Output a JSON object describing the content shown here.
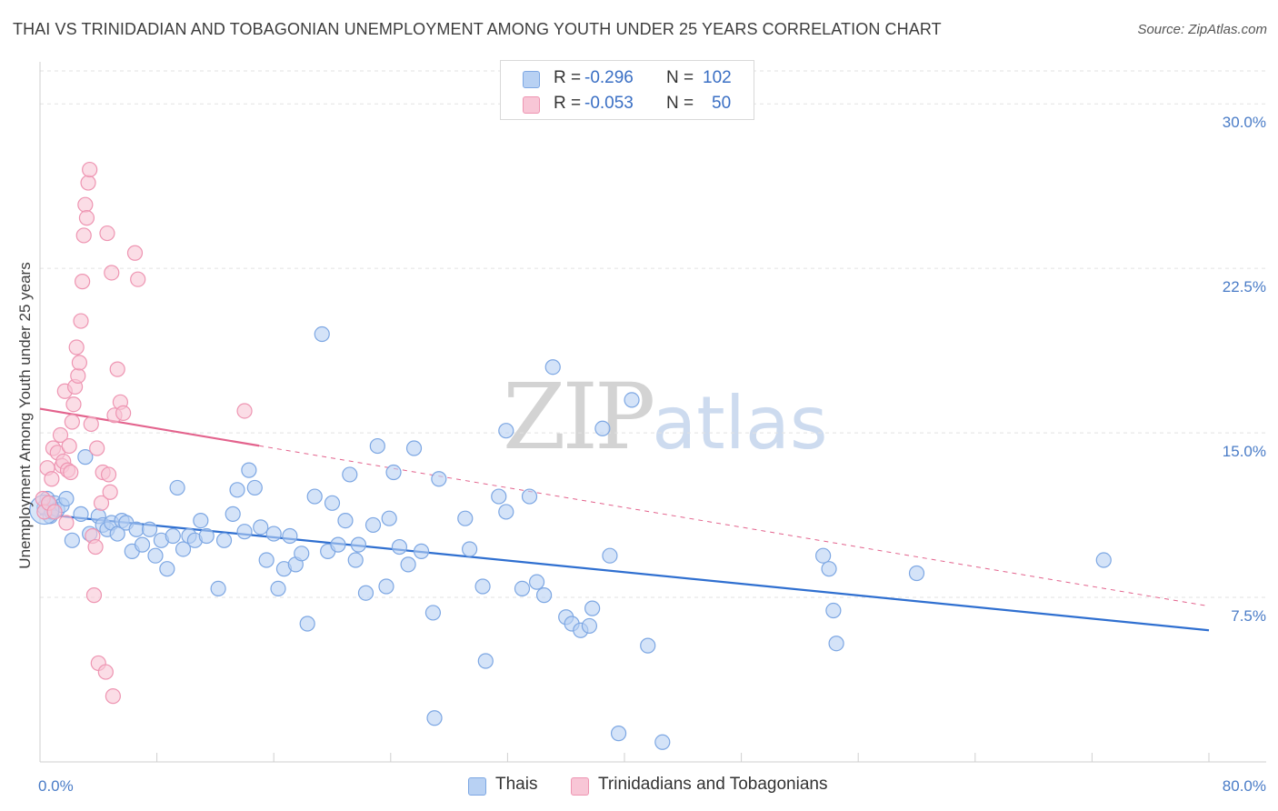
{
  "title": "THAI VS TRINIDADIAN AND TOBAGONIAN UNEMPLOYMENT AMONG YOUTH UNDER 25 YEARS CORRELATION CHART",
  "source": "Source: ZipAtlas.com",
  "watermark": {
    "zip": "ZIP",
    "atlas": "atlas"
  },
  "legend": {
    "rows": [
      {
        "r_label": "R =",
        "r_value": "-0.296",
        "n_label": "N =",
        "n_value": "102",
        "color": "#b8d1f3",
        "border": "#7da7e3"
      },
      {
        "r_label": "R =",
        "r_value": "-0.053",
        "n_label": "N =",
        "n_value": "50",
        "color": "#f8c6d6",
        "border": "#ee95b2"
      }
    ]
  },
  "bottom_legend": [
    {
      "label": "Thais",
      "color": "#b8d1f3",
      "border": "#7da7e3"
    },
    {
      "label": "Trinidadians and Tobagonians",
      "color": "#f8c6d6",
      "border": "#ee95b2"
    }
  ],
  "chart_data": {
    "type": "scatter",
    "ylabel": "Unemployment Among Youth under 25 years",
    "xlim": [
      0,
      80
    ],
    "ylim": [
      0,
      31.5
    ],
    "x_tick_labels": [
      {
        "value": 0,
        "label": "0.0%"
      },
      {
        "value": 80,
        "label": "80.0%"
      }
    ],
    "x_minor_ticks": [
      0,
      8,
      16,
      24,
      32,
      40,
      48,
      56,
      64,
      72,
      80
    ],
    "y_ticks": [
      {
        "value": 7.5,
        "label": "7.5%"
      },
      {
        "value": 15.0,
        "label": "15.0%"
      },
      {
        "value": 22.5,
        "label": "22.5%"
      },
      {
        "value": 30.0,
        "label": "30.0%"
      }
    ],
    "grid": true,
    "legend_position": "top-center",
    "series": [
      {
        "name": "Thais",
        "color": "#7da7e3",
        "fill": "#b8d1f3",
        "line_color": "#2f6fd0",
        "trend": {
          "x0": 0,
          "y0": 11.3,
          "x1": 80,
          "y1": 6.0,
          "dashed_from": null
        },
        "points": [
          [
            0.3,
            11.6
          ],
          [
            0.5,
            12.0
          ],
          [
            0.7,
            11.2
          ],
          [
            0.8,
            11.4
          ],
          [
            1.0,
            11.8
          ],
          [
            1.2,
            11.5
          ],
          [
            1.5,
            11.7
          ],
          [
            1.8,
            12.0
          ],
          [
            2.2,
            10.1
          ],
          [
            2.8,
            11.3
          ],
          [
            3.1,
            13.9
          ],
          [
            3.4,
            10.4
          ],
          [
            4.0,
            11.2
          ],
          [
            4.3,
            10.8
          ],
          [
            4.6,
            10.6
          ],
          [
            4.9,
            10.9
          ],
          [
            5.3,
            10.4
          ],
          [
            5.6,
            11.0
          ],
          [
            5.9,
            10.9
          ],
          [
            6.3,
            9.6
          ],
          [
            6.6,
            10.6
          ],
          [
            7.0,
            9.9
          ],
          [
            7.5,
            10.6
          ],
          [
            7.9,
            9.4
          ],
          [
            8.3,
            10.1
          ],
          [
            8.7,
            8.8
          ],
          [
            9.1,
            10.3
          ],
          [
            9.4,
            12.5
          ],
          [
            9.8,
            9.7
          ],
          [
            10.2,
            10.3
          ],
          [
            10.6,
            10.1
          ],
          [
            11.0,
            11.0
          ],
          [
            11.4,
            10.3
          ],
          [
            12.2,
            7.9
          ],
          [
            12.6,
            10.1
          ],
          [
            13.2,
            11.3
          ],
          [
            13.5,
            12.4
          ],
          [
            14.0,
            10.5
          ],
          [
            14.3,
            13.3
          ],
          [
            14.7,
            12.5
          ],
          [
            15.1,
            10.7
          ],
          [
            15.5,
            9.2
          ],
          [
            16.0,
            10.4
          ],
          [
            16.3,
            7.9
          ],
          [
            16.7,
            8.8
          ],
          [
            17.1,
            10.3
          ],
          [
            17.5,
            9.0
          ],
          [
            17.9,
            9.5
          ],
          [
            18.3,
            6.3
          ],
          [
            18.8,
            12.1
          ],
          [
            19.3,
            19.5
          ],
          [
            19.7,
            9.6
          ],
          [
            20.0,
            11.8
          ],
          [
            20.4,
            9.9
          ],
          [
            20.9,
            11.0
          ],
          [
            21.2,
            13.1
          ],
          [
            21.6,
            9.2
          ],
          [
            21.8,
            9.9
          ],
          [
            22.3,
            7.7
          ],
          [
            22.8,
            10.8
          ],
          [
            23.1,
            14.4
          ],
          [
            23.7,
            8.0
          ],
          [
            23.9,
            11.1
          ],
          [
            24.2,
            13.2
          ],
          [
            24.6,
            9.8
          ],
          [
            25.2,
            9.0
          ],
          [
            25.6,
            14.3
          ],
          [
            26.1,
            9.6
          ],
          [
            26.9,
            6.8
          ],
          [
            27.0,
            2.0
          ],
          [
            27.3,
            12.9
          ],
          [
            29.1,
            11.1
          ],
          [
            29.4,
            9.7
          ],
          [
            30.3,
            8.0
          ],
          [
            30.5,
            4.6
          ],
          [
            31.4,
            12.1
          ],
          [
            31.9,
            11.4
          ],
          [
            31.9,
            15.1
          ],
          [
            33.0,
            7.9
          ],
          [
            33.5,
            12.1
          ],
          [
            34.0,
            8.2
          ],
          [
            34.5,
            7.6
          ],
          [
            35.1,
            18.0
          ],
          [
            36.0,
            6.6
          ],
          [
            36.4,
            6.3
          ],
          [
            37.0,
            6.0
          ],
          [
            37.6,
            6.2
          ],
          [
            37.8,
            7.0
          ],
          [
            38.5,
            15.2
          ],
          [
            39.0,
            9.4
          ],
          [
            39.6,
            1.3
          ],
          [
            40.5,
            16.5
          ],
          [
            41.6,
            5.3
          ],
          [
            42.6,
            0.9
          ],
          [
            53.6,
            9.4
          ],
          [
            54.0,
            8.8
          ],
          [
            54.3,
            6.9
          ],
          [
            54.5,
            5.4
          ],
          [
            60.0,
            8.6
          ],
          [
            72.8,
            9.2
          ]
        ]
      },
      {
        "name": "Trinidadians and Tobagonians",
        "color": "#ee95b2",
        "fill": "#f8c6d6",
        "line_color": "#e3638d",
        "trend": {
          "x0": 0,
          "y0": 16.1,
          "x1": 80,
          "y1": 7.1,
          "solid_until": 15
        },
        "points": [
          [
            0.2,
            12.0
          ],
          [
            0.3,
            11.4
          ],
          [
            0.5,
            13.4
          ],
          [
            0.6,
            11.8
          ],
          [
            0.8,
            12.9
          ],
          [
            0.9,
            14.3
          ],
          [
            1.0,
            11.4
          ],
          [
            1.2,
            14.1
          ],
          [
            1.4,
            14.9
          ],
          [
            1.5,
            13.5
          ],
          [
            1.6,
            13.7
          ],
          [
            1.7,
            16.9
          ],
          [
            1.8,
            10.9
          ],
          [
            1.9,
            13.3
          ],
          [
            2.0,
            14.4
          ],
          [
            2.1,
            13.2
          ],
          [
            2.2,
            15.5
          ],
          [
            2.3,
            16.3
          ],
          [
            2.4,
            17.1
          ],
          [
            2.5,
            18.9
          ],
          [
            2.6,
            17.6
          ],
          [
            2.7,
            18.2
          ],
          [
            2.8,
            20.1
          ],
          [
            2.9,
            21.9
          ],
          [
            3.0,
            24.0
          ],
          [
            3.1,
            25.4
          ],
          [
            3.2,
            24.8
          ],
          [
            3.3,
            26.4
          ],
          [
            3.4,
            27.0
          ],
          [
            3.5,
            15.4
          ],
          [
            3.6,
            10.3
          ],
          [
            3.7,
            7.6
          ],
          [
            3.8,
            9.8
          ],
          [
            3.9,
            14.3
          ],
          [
            4.0,
            4.5
          ],
          [
            4.2,
            11.8
          ],
          [
            4.3,
            13.2
          ],
          [
            4.5,
            4.1
          ],
          [
            4.6,
            24.1
          ],
          [
            4.7,
            13.1
          ],
          [
            4.8,
            12.3
          ],
          [
            4.9,
            22.3
          ],
          [
            5.0,
            3.0
          ],
          [
            5.1,
            15.8
          ],
          [
            5.3,
            17.9
          ],
          [
            5.5,
            16.4
          ],
          [
            5.7,
            15.9
          ],
          [
            6.5,
            23.2
          ],
          [
            6.7,
            22.0
          ],
          [
            14.0,
            16.0
          ]
        ]
      }
    ]
  }
}
